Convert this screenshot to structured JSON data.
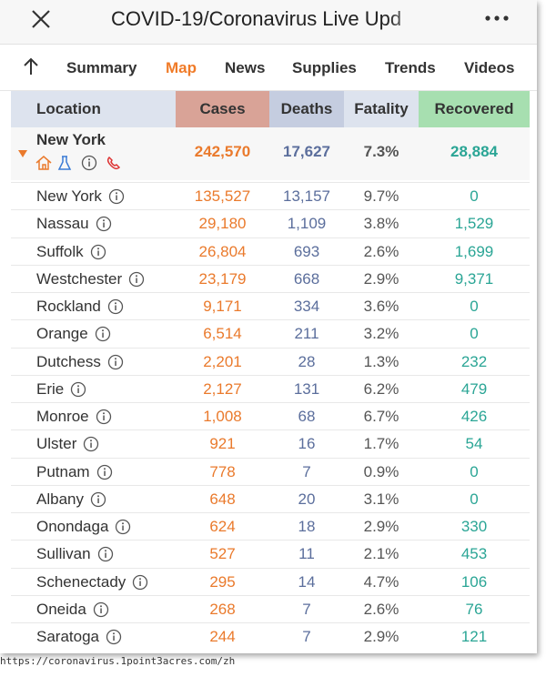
{
  "header": {
    "title": "COVID-19/Coronavirus Live Upd"
  },
  "tabs": [
    "Summary",
    "Map",
    "News",
    "Supplies",
    "Trends",
    "Videos"
  ],
  "active_tab": 1,
  "table": {
    "columns": [
      "Location",
      "Cases",
      "Deaths",
      "Fatality",
      "Recovered"
    ],
    "state": [
      "New York",
      "242,570",
      "17,627",
      "7.3%",
      "28,884"
    ],
    "rows": [
      [
        "New York",
        "135,527",
        "13,157",
        "9.7%",
        "0"
      ],
      [
        "Nassau",
        "29,180",
        "1,109",
        "3.8%",
        "1,529"
      ],
      [
        "Suffolk",
        "26,804",
        "693",
        "2.6%",
        "1,699"
      ],
      [
        "Westchester",
        "23,179",
        "668",
        "2.9%",
        "9,371"
      ],
      [
        "Rockland",
        "9,171",
        "334",
        "3.6%",
        "0"
      ],
      [
        "Orange",
        "6,514",
        "211",
        "3.2%",
        "0"
      ],
      [
        "Dutchess",
        "2,201",
        "28",
        "1.3%",
        "232"
      ],
      [
        "Erie",
        "2,127",
        "131",
        "6.2%",
        "479"
      ],
      [
        "Monroe",
        "1,008",
        "68",
        "6.7%",
        "426"
      ],
      [
        "Ulster",
        "921",
        "16",
        "1.7%",
        "54"
      ],
      [
        "Putnam",
        "778",
        "7",
        "0.9%",
        "0"
      ],
      [
        "Albany",
        "648",
        "20",
        "3.1%",
        "0"
      ],
      [
        "Onondaga",
        "624",
        "18",
        "2.9%",
        "330"
      ],
      [
        "Sullivan",
        "527",
        "11",
        "2.1%",
        "453"
      ],
      [
        "Schenectady",
        "295",
        "14",
        "4.7%",
        "106"
      ],
      [
        "Oneida",
        "268",
        "7",
        "2.6%",
        "76"
      ],
      [
        "Saratoga",
        "244",
        "7",
        "2.9%",
        "121"
      ]
    ]
  },
  "footer": {
    "url": "https://coronavirus.1point3acres.com/zh"
  }
}
